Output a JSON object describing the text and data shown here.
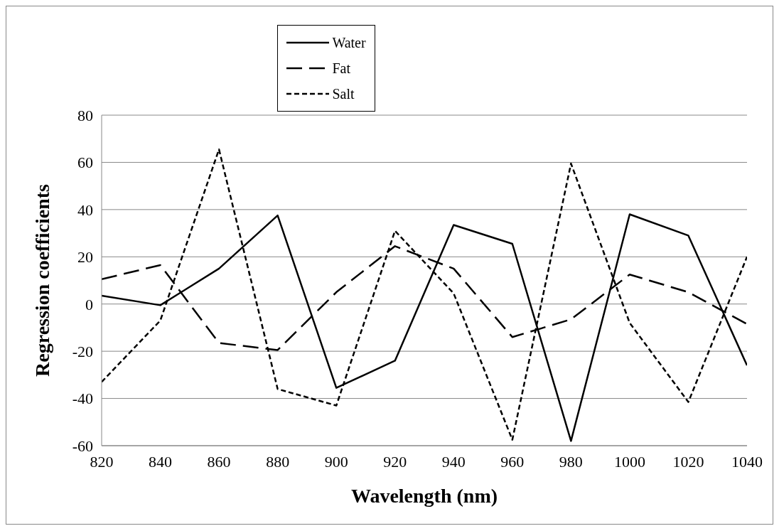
{
  "chart_data": {
    "type": "line",
    "xlabel": "Wavelength  (nm)",
    "ylabel": "Regression  coefficients",
    "x": [
      820,
      840,
      860,
      880,
      900,
      920,
      940,
      960,
      980,
      1000,
      1020,
      1040
    ],
    "series": [
      {
        "name": "Water",
        "color": "#000000",
        "line_style": "solid",
        "values": [
          3.5,
          -0.5,
          15,
          37.5,
          -35.5,
          -24,
          33.5,
          25.5,
          -58,
          38,
          29,
          -26
        ]
      },
      {
        "name": "Fat",
        "color": "#000000",
        "line_style": "dashed",
        "values": [
          10.5,
          16.5,
          -16.5,
          -19.5,
          5,
          24.5,
          15,
          -14,
          -6.5,
          12.5,
          5,
          -8.5
        ]
      },
      {
        "name": "Salt",
        "color": "#000000",
        "line_style": "dotted",
        "values": [
          -33,
          -7,
          65.5,
          -36,
          -43,
          31,
          4.5,
          -57.5,
          59.5,
          -8,
          -41.5,
          20
        ]
      }
    ],
    "xlim": [
      820,
      1040
    ],
    "xticks": [
      820,
      840,
      860,
      880,
      900,
      920,
      940,
      960,
      980,
      1000,
      1020,
      1040
    ],
    "ylim": [
      -60,
      80
    ],
    "yticks": [
      -60,
      -40,
      -20,
      0,
      20,
      40,
      60,
      80
    ],
    "grid": "y",
    "legend": "top",
    "marker": "none"
  }
}
